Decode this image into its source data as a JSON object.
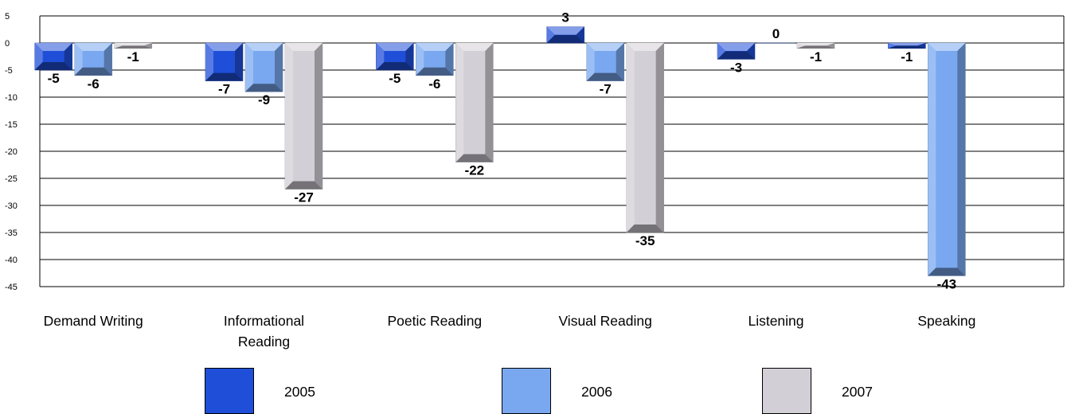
{
  "chart_data": {
    "type": "bar",
    "title": "",
    "xlabel": "",
    "ylabel": "",
    "ylim": [
      -45,
      5
    ],
    "yticks": [
      5,
      0,
      -5,
      -10,
      -15,
      -20,
      -25,
      -30,
      -35,
      -40,
      -45
    ],
    "grid": true,
    "legend_position": "bottom",
    "categories": [
      "Demand Writing",
      "Informational Reading",
      "Poetic Reading",
      "Visual Reading",
      "Listening",
      "Speaking"
    ],
    "category_lines": [
      [
        "Demand Writing"
      ],
      [
        "Informational",
        "Reading"
      ],
      [
        "Poetic Reading"
      ],
      [
        "Visual Reading"
      ],
      [
        "Listening"
      ],
      [
        "Speaking"
      ]
    ],
    "series": [
      {
        "name": "2005",
        "color": "#1F4FD8",
        "values": [
          -5,
          -7,
          -5,
          3,
          -3,
          -1
        ]
      },
      {
        "name": "2006",
        "color": "#7AA8F0",
        "values": [
          -6,
          -9,
          -6,
          -7,
          0,
          -43
        ]
      },
      {
        "name": "2007",
        "color": "#D3CFD6",
        "values": [
          -1,
          -27,
          -22,
          -35,
          -1,
          null
        ]
      }
    ]
  }
}
